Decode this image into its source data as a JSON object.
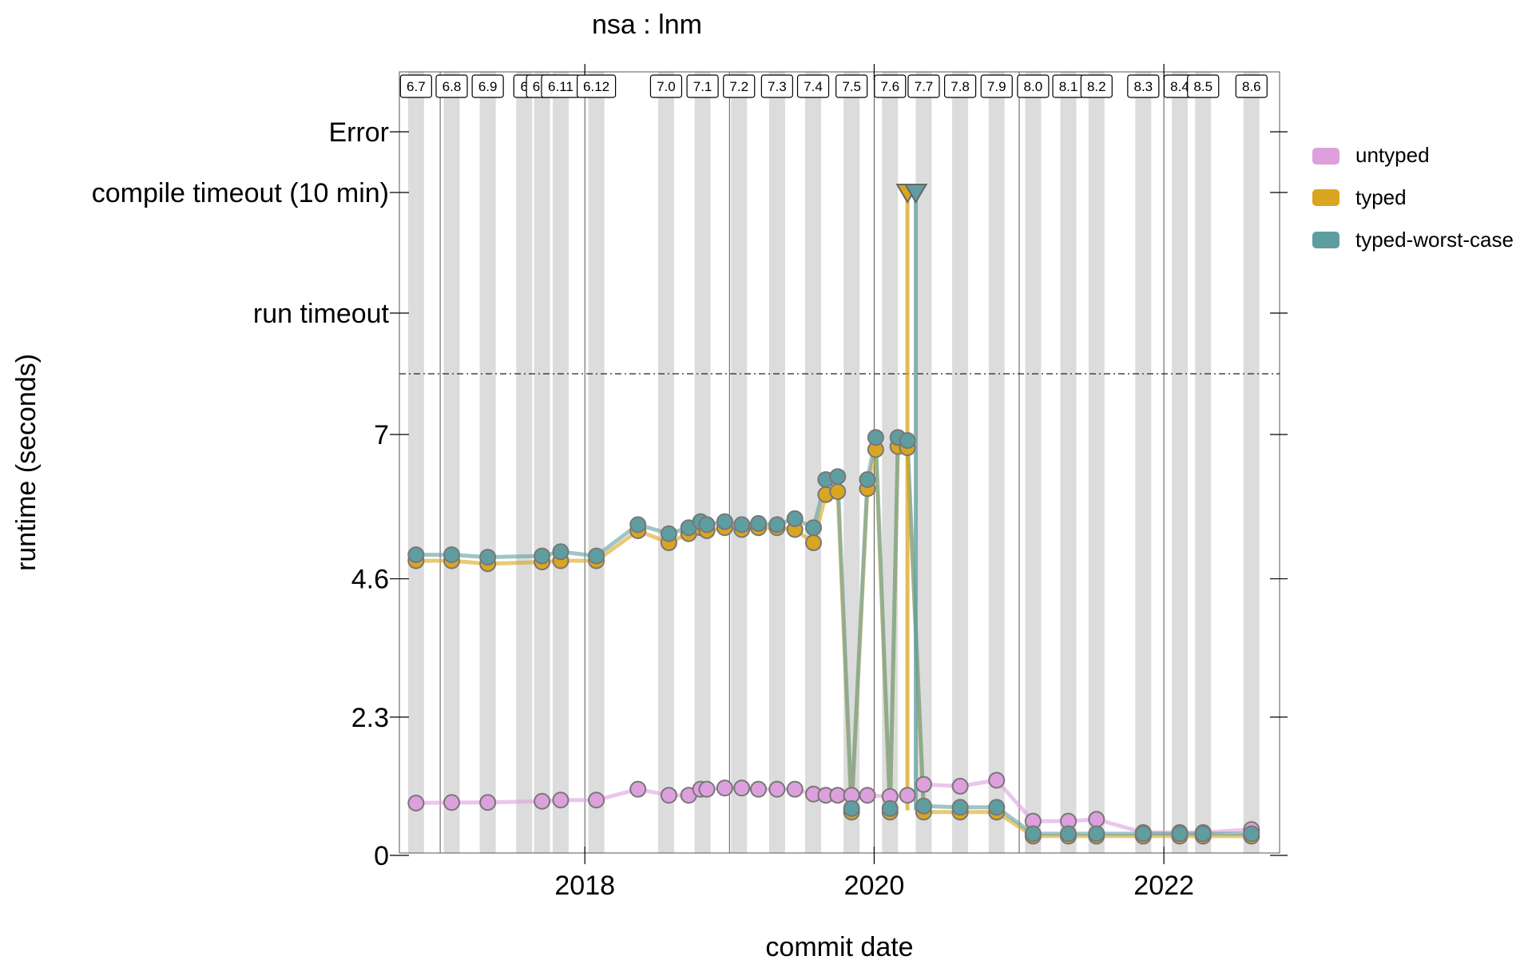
{
  "chart_data": {
    "type": "line",
    "title": "nsa : lnm",
    "xlabel": "commit date",
    "ylabel": "runtime (seconds)",
    "x_ticks": [
      "2018",
      "2020",
      "2022"
    ],
    "y_ticks": [
      "0",
      "2.3",
      "4.6",
      "7"
    ],
    "y_tick_values": [
      0,
      2.3,
      4.6,
      7
    ],
    "y_special_ticks": [
      "run timeout",
      "compile timeout (10 min)",
      "Error"
    ],
    "xlim": [
      "2016-09-20",
      "2022-10-20"
    ],
    "ylim": [
      0,
      7
    ],
    "grid": false,
    "legend_position": "right",
    "releases": [
      {
        "label": "6.7",
        "date": "2016-11-01"
      },
      {
        "label": "6.8",
        "date": "2017-01-30"
      },
      {
        "label": "6.9",
        "date": "2017-05-01"
      },
      {
        "label": "6",
        "date": "2017-08-01"
      },
      {
        "label": "6.1",
        "date": "2017-09-15"
      },
      {
        "label": "6.11",
        "date": "2017-11-01"
      },
      {
        "label": "6.12",
        "date": "2018-01-30"
      },
      {
        "label": "7.0",
        "date": "2018-07-25"
      },
      {
        "label": "7.1",
        "date": "2018-10-25"
      },
      {
        "label": "7.2",
        "date": "2019-01-25"
      },
      {
        "label": "7.3",
        "date": "2019-05-01"
      },
      {
        "label": "7.4",
        "date": "2019-07-31"
      },
      {
        "label": "7.5",
        "date": "2019-11-05"
      },
      {
        "label": "7.6",
        "date": "2020-02-10"
      },
      {
        "label": "7.7",
        "date": "2020-05-05"
      },
      {
        "label": "7.8",
        "date": "2020-08-05"
      },
      {
        "label": "7.9",
        "date": "2020-11-05"
      },
      {
        "label": "8.0",
        "date": "2021-02-05"
      },
      {
        "label": "8.1",
        "date": "2021-05-05"
      },
      {
        "label": "8.2",
        "date": "2021-07-15"
      },
      {
        "label": "8.3",
        "date": "2021-11-10"
      },
      {
        "label": "8.4",
        "date": "2022-02-10"
      },
      {
        "label": "8.5",
        "date": "2022-04-10"
      },
      {
        "label": "8.6",
        "date": "2022-08-10"
      }
    ],
    "reference_line": {
      "style": "dash-dot",
      "position": "between top numeric tick and run timeout"
    },
    "series": [
      {
        "name": "untyped",
        "color": "#dda0dd",
        "points": [
          [
            "2016-11-01",
            0.87
          ],
          [
            "2017-01-30",
            0.88
          ],
          [
            "2017-05-01",
            0.88
          ],
          [
            "2017-09-15",
            0.9
          ],
          [
            "2017-11-01",
            0.92
          ],
          [
            "2018-01-30",
            0.92
          ],
          [
            "2018-05-15",
            1.1
          ],
          [
            "2018-08-01",
            1.0
          ],
          [
            "2018-09-20",
            1.0
          ],
          [
            "2018-10-20",
            1.1
          ],
          [
            "2018-11-05",
            1.1
          ],
          [
            "2018-12-20",
            1.12
          ],
          [
            "2019-02-01",
            1.12
          ],
          [
            "2019-03-15",
            1.1
          ],
          [
            "2019-05-01",
            1.1
          ],
          [
            "2019-06-15",
            1.1
          ],
          [
            "2019-08-01",
            1.02
          ],
          [
            "2019-09-01",
            1.0
          ],
          [
            "2019-10-01",
            1.0
          ],
          [
            "2019-11-05",
            1.0
          ],
          [
            "2019-12-15",
            1.0
          ],
          [
            "2020-02-10",
            0.98
          ],
          [
            "2020-03-25",
            1.0
          ],
          [
            "2020-05-05",
            1.18
          ],
          [
            "2020-08-05",
            1.15
          ],
          [
            "2020-11-05",
            1.25
          ],
          [
            "2021-02-05",
            0.57
          ],
          [
            "2021-05-05",
            0.57
          ],
          [
            "2021-07-15",
            0.6
          ],
          [
            "2021-11-10",
            0.38
          ],
          [
            "2022-02-10",
            0.38
          ],
          [
            "2022-04-10",
            0.38
          ],
          [
            "2022-08-10",
            0.43
          ]
        ]
      },
      {
        "name": "typed",
        "color": "#daa520",
        "points": [
          [
            "2016-11-01",
            4.9
          ],
          [
            "2017-01-30",
            4.9
          ],
          [
            "2017-05-01",
            4.85
          ],
          [
            "2017-09-15",
            4.88
          ],
          [
            "2017-11-01",
            4.9
          ],
          [
            "2018-01-30",
            4.9
          ],
          [
            "2018-05-15",
            5.4
          ],
          [
            "2018-08-01",
            5.2
          ],
          [
            "2018-09-20",
            5.35
          ],
          [
            "2018-10-20",
            5.45
          ],
          [
            "2018-11-05",
            5.4
          ],
          [
            "2018-12-20",
            5.45
          ],
          [
            "2019-02-01",
            5.42
          ],
          [
            "2019-03-15",
            5.45
          ],
          [
            "2019-05-01",
            5.45
          ],
          [
            "2019-06-15",
            5.42
          ],
          [
            "2019-08-01",
            5.2
          ],
          [
            "2019-09-01",
            6.0
          ],
          [
            "2019-10-01",
            6.05
          ],
          [
            "2019-11-05",
            0.72
          ],
          [
            "2019-12-15",
            6.1
          ],
          [
            "2020-01-05",
            6.75
          ],
          [
            "2020-02-10",
            0.72
          ],
          [
            "2020-03-01",
            6.8
          ],
          [
            "2020-03-25",
            6.78
          ],
          [
            "2020-05-05",
            0.72
          ],
          [
            "2020-08-05",
            0.72
          ],
          [
            "2020-11-05",
            0.72
          ],
          [
            "2021-02-05",
            0.32
          ],
          [
            "2021-05-05",
            0.32
          ],
          [
            "2021-07-15",
            0.32
          ],
          [
            "2021-11-10",
            0.32
          ],
          [
            "2022-02-10",
            0.32
          ],
          [
            "2022-04-10",
            0.32
          ],
          [
            "2022-08-10",
            0.32
          ]
        ]
      },
      {
        "name": "typed-worst-case",
        "color": "#5f9ea0",
        "points": [
          [
            "2016-11-01",
            5.0
          ],
          [
            "2017-01-30",
            5.0
          ],
          [
            "2017-05-01",
            4.96
          ],
          [
            "2017-09-15",
            4.98
          ],
          [
            "2017-11-01",
            5.05
          ],
          [
            "2018-01-30",
            4.98
          ],
          [
            "2018-05-15",
            5.5
          ],
          [
            "2018-08-01",
            5.35
          ],
          [
            "2018-09-20",
            5.45
          ],
          [
            "2018-10-20",
            5.55
          ],
          [
            "2018-11-05",
            5.5
          ],
          [
            "2018-12-20",
            5.55
          ],
          [
            "2019-02-01",
            5.5
          ],
          [
            "2019-03-15",
            5.52
          ],
          [
            "2019-05-01",
            5.5
          ],
          [
            "2019-06-15",
            5.6
          ],
          [
            "2019-08-01",
            5.45
          ],
          [
            "2019-09-01",
            6.25
          ],
          [
            "2019-10-01",
            6.3
          ],
          [
            "2019-11-05",
            0.78
          ],
          [
            "2019-12-15",
            6.25
          ],
          [
            "2020-01-05",
            6.95
          ],
          [
            "2020-02-10",
            0.78
          ],
          [
            "2020-03-01",
            6.95
          ],
          [
            "2020-03-25",
            6.9
          ],
          [
            "2020-05-05",
            0.82
          ],
          [
            "2020-08-05",
            0.8
          ],
          [
            "2020-11-05",
            0.8
          ],
          [
            "2021-02-05",
            0.36
          ],
          [
            "2021-05-05",
            0.36
          ],
          [
            "2021-07-15",
            0.36
          ],
          [
            "2021-11-10",
            0.36
          ],
          [
            "2022-02-10",
            0.36
          ],
          [
            "2022-04-10",
            0.36
          ],
          [
            "2022-08-10",
            0.36
          ]
        ]
      }
    ],
    "compile_timeout_markers": [
      {
        "series": "typed",
        "date": "2020-03-25"
      },
      {
        "series": "typed-worst-case",
        "date": "2020-04-15"
      }
    ]
  }
}
